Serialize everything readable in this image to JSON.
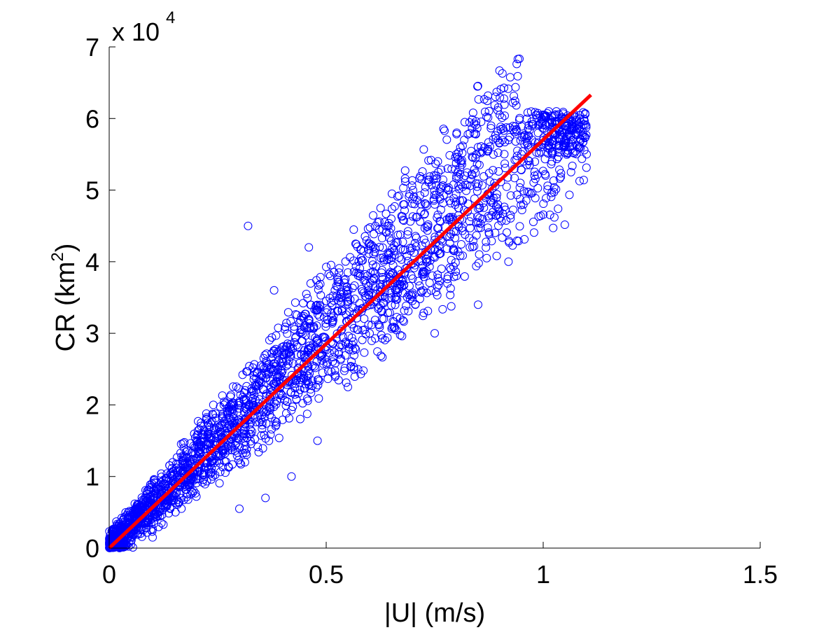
{
  "chart_data": {
    "type": "scatter",
    "title": "",
    "xlabel": "|U| (m/s)",
    "ylabel_main": "CR (km",
    "ylabel_sup": "2",
    "ylabel_close": ")",
    "y_multiplier_prefix": "x 10",
    "y_multiplier_exponent": "4",
    "xlim": [
      0,
      1.5
    ],
    "ylim": [
      0,
      70000
    ],
    "x_ticks": [
      0,
      0.5,
      1,
      1.5
    ],
    "x_tick_labels": [
      "0",
      "0.5",
      "1",
      "1.5"
    ],
    "y_ticks": [
      0,
      10000,
      20000,
      30000,
      40000,
      50000,
      60000,
      70000
    ],
    "y_tick_labels": [
      "0",
      "1",
      "2",
      "3",
      "4",
      "5",
      "6",
      "7"
    ],
    "grid": false,
    "legend": "none",
    "series": [
      {
        "kind": "scatter",
        "color": "#0000ff",
        "marker": "open-circle",
        "approx_relation": "CR ≈ 57000 × |U|, spread widening with |U|",
        "points": [
          [
            0.02,
            1200
          ],
          [
            0.04,
            2600
          ],
          [
            0.05,
            3000
          ],
          [
            0.06,
            4200
          ],
          [
            0.08,
            5200
          ],
          [
            0.1,
            6000
          ],
          [
            0.12,
            7500
          ],
          [
            0.14,
            8600
          ],
          [
            0.15,
            9500
          ],
          [
            0.17,
            10500
          ],
          [
            0.18,
            11800
          ],
          [
            0.2,
            12500
          ],
          [
            0.21,
            13800
          ],
          [
            0.23,
            14600
          ],
          [
            0.25,
            16000
          ],
          [
            0.26,
            17200
          ],
          [
            0.28,
            18000
          ],
          [
            0.3,
            19500
          ],
          [
            0.31,
            20800
          ],
          [
            0.33,
            22000
          ],
          [
            0.35,
            23200
          ],
          [
            0.36,
            24500
          ],
          [
            0.38,
            25800
          ],
          [
            0.4,
            27000
          ],
          [
            0.41,
            28200
          ],
          [
            0.43,
            29500
          ],
          [
            0.45,
            30800
          ],
          [
            0.46,
            32000
          ],
          [
            0.48,
            33200
          ],
          [
            0.5,
            34500
          ],
          [
            0.52,
            36000
          ],
          [
            0.55,
            38500
          ],
          [
            0.58,
            40500
          ],
          [
            0.6,
            42500
          ],
          [
            0.63,
            44500
          ],
          [
            0.65,
            46000
          ],
          [
            0.68,
            48000
          ],
          [
            0.7,
            50000
          ],
          [
            0.72,
            51500
          ],
          [
            0.75,
            48000
          ],
          [
            0.78,
            53000
          ],
          [
            0.8,
            55000
          ],
          [
            0.82,
            52000
          ],
          [
            0.85,
            56000
          ],
          [
            0.88,
            59000
          ],
          [
            0.9,
            60500
          ],
          [
            0.92,
            57000
          ],
          [
            0.95,
            55000
          ],
          [
            0.98,
            52000
          ],
          [
            1.02,
            54000
          ],
          [
            1.05,
            57000
          ],
          [
            1.08,
            58000
          ],
          [
            1.1,
            55000
          ],
          [
            0.6,
            30000
          ],
          [
            0.65,
            35000
          ],
          [
            0.75,
            30000
          ],
          [
            0.8,
            38000
          ],
          [
            0.85,
            34000
          ],
          [
            0.92,
            40000
          ],
          [
            0.55,
            22500
          ],
          [
            0.48,
            15000
          ],
          [
            0.42,
            10000
          ],
          [
            0.36,
            7000
          ],
          [
            0.3,
            5500
          ],
          [
            0.1,
            1500
          ],
          [
            0.32,
            45000
          ],
          [
            0.46,
            42000
          ],
          [
            0.38,
            36000
          ],
          [
            0.24,
            20000
          ],
          [
            0.05,
            500
          ]
        ]
      },
      {
        "kind": "line",
        "color": "#ff0000",
        "name": "",
        "line_points": [
          [
            0,
            0
          ],
          [
            1.11,
            63300
          ]
        ]
      }
    ]
  }
}
